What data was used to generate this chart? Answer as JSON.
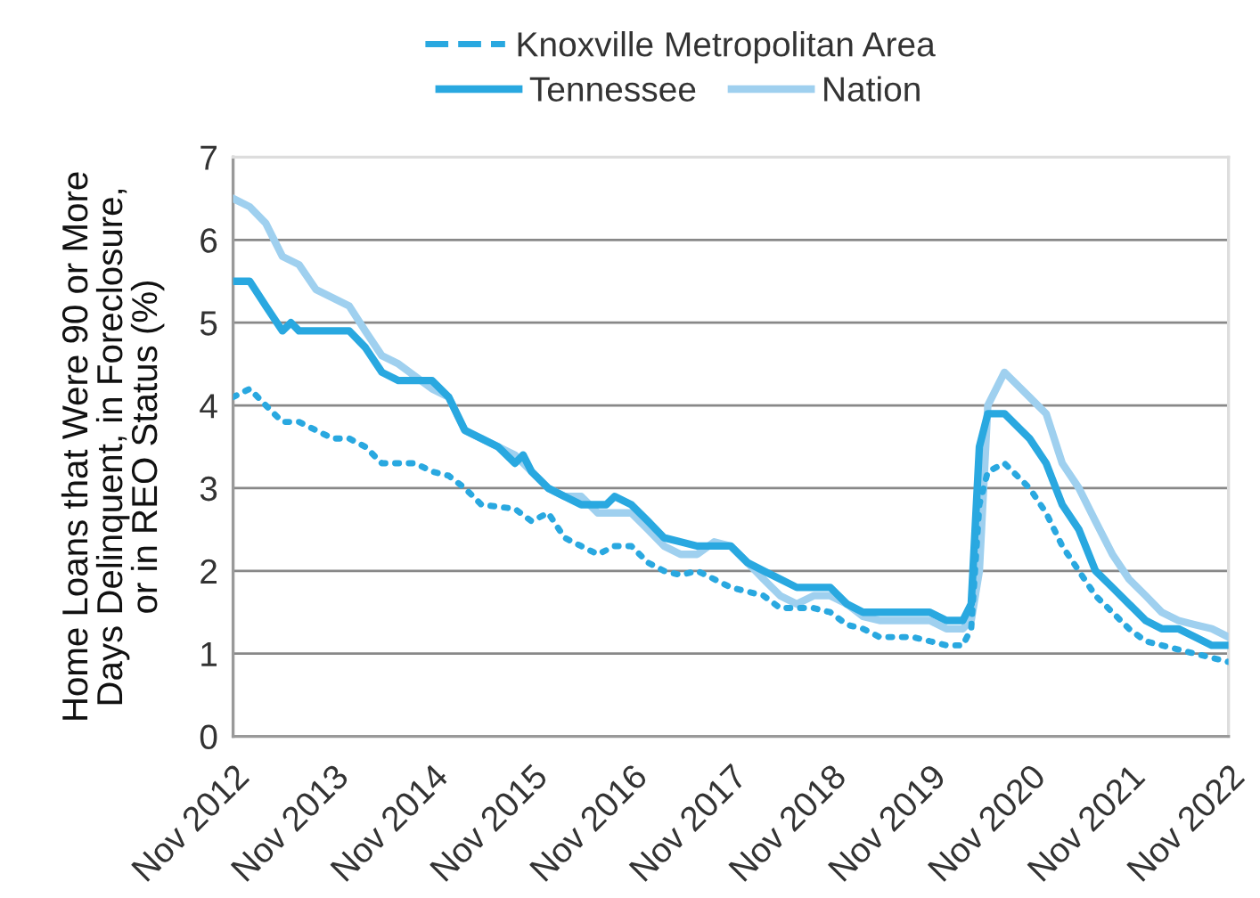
{
  "chart_data": {
    "type": "line",
    "ylabel": "Home Loans that Were 90 or More\nDays Delinquent, in Foreclosure,\nor in REO Status (%)",
    "xlim": [
      "2012-11",
      "2022-11"
    ],
    "xticks": [
      {
        "value": "2012-11",
        "label": "Nov 2012"
      },
      {
        "value": "2013-11",
        "label": "Nov 2013"
      },
      {
        "value": "2014-11",
        "label": "Nov 2014"
      },
      {
        "value": "2015-11",
        "label": "Nov 2015"
      },
      {
        "value": "2016-11",
        "label": "Nov 2016"
      },
      {
        "value": "2017-11",
        "label": "Nov 2017"
      },
      {
        "value": "2018-11",
        "label": "Nov 2018"
      },
      {
        "value": "2019-11",
        "label": "Nov 2019"
      },
      {
        "value": "2020-11",
        "label": "Nov 2020"
      },
      {
        "value": "2021-11",
        "label": "Nov 2021"
      },
      {
        "value": "2022-11",
        "label": "Nov 2022"
      }
    ],
    "ylim": [
      0,
      7
    ],
    "yticks": [
      0,
      1,
      2,
      3,
      4,
      5,
      6,
      7
    ],
    "grid": "y",
    "legend": "top",
    "marker": "none",
    "series": [
      {
        "name": "Knoxville Metropolitan Area",
        "color": "#29a8e0",
        "line_style": "dotted",
        "x": [
          "2012-11",
          "2013-01",
          "2013-03",
          "2013-05",
          "2013-07",
          "2013-09",
          "2013-11",
          "2014-01",
          "2014-03",
          "2014-05",
          "2014-09",
          "2014-11",
          "2015-01",
          "2015-03",
          "2015-05",
          "2015-09",
          "2015-11",
          "2016-01",
          "2016-03",
          "2016-05",
          "2016-07",
          "2016-09",
          "2016-11",
          "2017-01",
          "2017-03",
          "2017-05",
          "2017-07",
          "2017-09",
          "2017-11",
          "2018-01",
          "2018-03",
          "2018-05",
          "2018-07",
          "2018-09",
          "2018-11",
          "2019-01",
          "2019-03",
          "2019-05",
          "2019-09",
          "2019-11",
          "2020-01",
          "2020-03",
          "2020-04",
          "2020-05",
          "2020-06",
          "2020-08",
          "2020-11",
          "2021-01",
          "2021-03",
          "2021-05",
          "2021-07",
          "2021-09",
          "2021-11",
          "2022-01",
          "2022-03",
          "2022-05",
          "2022-07",
          "2022-09",
          "2022-11"
        ],
        "values": [
          4.1,
          4.2,
          4.0,
          3.8,
          3.8,
          3.7,
          3.6,
          3.6,
          3.5,
          3.3,
          3.3,
          3.2,
          3.15,
          3.0,
          2.8,
          2.75,
          2.6,
          2.7,
          2.4,
          2.3,
          2.2,
          2.3,
          2.3,
          2.1,
          2.0,
          1.95,
          2.0,
          1.9,
          1.8,
          1.75,
          1.7,
          1.55,
          1.55,
          1.55,
          1.5,
          1.35,
          1.3,
          1.2,
          1.2,
          1.15,
          1.1,
          1.1,
          1.3,
          2.8,
          3.2,
          3.3,
          3.0,
          2.7,
          2.3,
          2.0,
          1.7,
          1.5,
          1.3,
          1.15,
          1.1,
          1.05,
          1.0,
          0.95,
          0.9
        ]
      },
      {
        "name": "Tennessee",
        "color": "#29a8e0",
        "line_style": "solid",
        "x": [
          "2012-11",
          "2013-01",
          "2013-03",
          "2013-05",
          "2013-06",
          "2013-07",
          "2014-01",
          "2014-03",
          "2014-05",
          "2014-07",
          "2014-11",
          "2015-01",
          "2015-03",
          "2015-05",
          "2015-07",
          "2015-09",
          "2015-10",
          "2015-11",
          "2016-01",
          "2016-03",
          "2016-05",
          "2016-08",
          "2016-09",
          "2016-11",
          "2017-01",
          "2017-03",
          "2017-05",
          "2017-07",
          "2017-09",
          "2017-11",
          "2018-01",
          "2018-03",
          "2018-05",
          "2018-07",
          "2018-11",
          "2019-01",
          "2019-03",
          "2019-05",
          "2019-11",
          "2020-01",
          "2020-03",
          "2020-04",
          "2020-05",
          "2020-06",
          "2020-08",
          "2020-11",
          "2021-01",
          "2021-03",
          "2021-05",
          "2021-07",
          "2021-09",
          "2021-11",
          "2022-01",
          "2022-03",
          "2022-05",
          "2022-07",
          "2022-09",
          "2022-11"
        ],
        "values": [
          5.5,
          5.5,
          5.2,
          4.9,
          5.0,
          4.9,
          4.9,
          4.7,
          4.4,
          4.3,
          4.3,
          4.1,
          3.7,
          3.6,
          3.5,
          3.3,
          3.4,
          3.2,
          3.0,
          2.9,
          2.8,
          2.8,
          2.9,
          2.8,
          2.6,
          2.4,
          2.35,
          2.3,
          2.3,
          2.3,
          2.1,
          2.0,
          1.9,
          1.8,
          1.8,
          1.6,
          1.5,
          1.5,
          1.5,
          1.4,
          1.4,
          1.6,
          3.5,
          3.9,
          3.9,
          3.6,
          3.3,
          2.8,
          2.5,
          2.0,
          1.8,
          1.6,
          1.4,
          1.3,
          1.3,
          1.2,
          1.1,
          1.1
        ]
      },
      {
        "name": "Nation",
        "color": "#9fd0ef",
        "line_style": "solid",
        "x": [
          "2012-11",
          "2013-01",
          "2013-03",
          "2013-05",
          "2013-07",
          "2013-09",
          "2013-11",
          "2014-01",
          "2014-03",
          "2014-05",
          "2014-07",
          "2014-09",
          "2014-11",
          "2015-01",
          "2015-03",
          "2015-05",
          "2015-07",
          "2015-09",
          "2015-11",
          "2016-01",
          "2016-03",
          "2016-05",
          "2016-07",
          "2016-09",
          "2016-11",
          "2017-01",
          "2017-03",
          "2017-05",
          "2017-07",
          "2017-09",
          "2017-11",
          "2018-01",
          "2018-03",
          "2018-05",
          "2018-07",
          "2018-09",
          "2018-11",
          "2019-01",
          "2019-03",
          "2019-05",
          "2019-07",
          "2019-09",
          "2019-11",
          "2020-01",
          "2020-03",
          "2020-04",
          "2020-05",
          "2020-06",
          "2020-08",
          "2020-11",
          "2021-01",
          "2021-03",
          "2021-05",
          "2021-07",
          "2021-09",
          "2021-11",
          "2022-01",
          "2022-03",
          "2022-05",
          "2022-07",
          "2022-09",
          "2022-11"
        ],
        "values": [
          6.5,
          6.4,
          6.2,
          5.8,
          5.7,
          5.4,
          5.3,
          5.2,
          4.9,
          4.6,
          4.5,
          4.35,
          4.2,
          4.1,
          3.7,
          3.6,
          3.5,
          3.4,
          3.2,
          3.0,
          2.9,
          2.9,
          2.7,
          2.7,
          2.7,
          2.5,
          2.3,
          2.2,
          2.2,
          2.35,
          2.3,
          2.1,
          1.9,
          1.7,
          1.6,
          1.7,
          1.7,
          1.6,
          1.45,
          1.4,
          1.4,
          1.4,
          1.4,
          1.3,
          1.3,
          1.4,
          2.0,
          4.0,
          4.4,
          4.1,
          3.9,
          3.3,
          3.0,
          2.6,
          2.2,
          1.9,
          1.7,
          1.5,
          1.4,
          1.35,
          1.3,
          1.2
        ]
      }
    ]
  }
}
